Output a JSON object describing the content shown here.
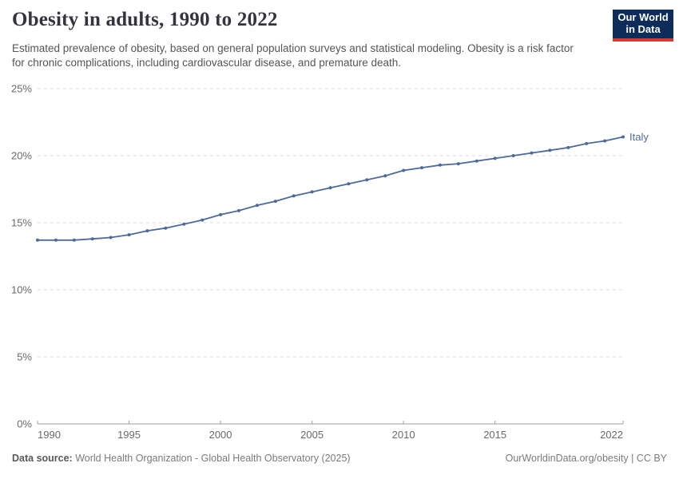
{
  "header": {
    "title": "Obesity in adults, 1990 to 2022",
    "subtitle": "Estimated prevalence of obesity, based on general population surveys and statistical modeling. Obesity is a risk factor for chronic complications, including cardiovascular disease, and premature death.",
    "logo": {
      "line1": "Our World",
      "line2": "in Data",
      "bg_color": "#0d2c5a",
      "accent_color": "#d8392c"
    }
  },
  "chart_data": {
    "type": "line",
    "title": "Obesity in adults, 1990 to 2022",
    "x": [
      1990,
      1991,
      1992,
      1993,
      1994,
      1995,
      1996,
      1997,
      1998,
      1999,
      2000,
      2001,
      2002,
      2003,
      2004,
      2005,
      2006,
      2007,
      2008,
      2009,
      2010,
      2011,
      2012,
      2013,
      2014,
      2015,
      2016,
      2017,
      2018,
      2019,
      2020,
      2021,
      2022
    ],
    "series": [
      {
        "name": "Italy",
        "color": "#4c6a9c",
        "values": [
          13.7,
          13.7,
          13.7,
          13.8,
          13.9,
          14.1,
          14.4,
          14.6,
          14.9,
          15.2,
          15.6,
          15.9,
          16.3,
          16.6,
          17.0,
          17.3,
          17.6,
          17.9,
          18.2,
          18.5,
          18.9,
          19.1,
          19.3,
          19.4,
          19.6,
          19.8,
          20.0,
          20.2,
          20.4,
          20.6,
          20.9,
          21.1,
          21.4
        ]
      }
    ],
    "xlim": [
      1990,
      2022
    ],
    "ylim": [
      0,
      25
    ],
    "yticks": [
      0,
      5,
      10,
      15,
      20,
      25
    ],
    "ytick_labels": [
      "0%",
      "5%",
      "10%",
      "15%",
      "20%",
      "25%"
    ],
    "xticks": [
      1990,
      1995,
      2000,
      2005,
      2010,
      2015,
      2022
    ],
    "grid": "horizontal-dashed",
    "legend_position": "end-of-line",
    "colors": {
      "gridline": "#dcdcdc",
      "axis": "#9e9e9e",
      "tick_text": "#696969"
    }
  },
  "footer": {
    "datasource_label": "Data source:",
    "datasource_text": " World Health Organization - Global Health Observatory (2025)",
    "credit": "OurWorldinData.org/obesity | CC BY"
  }
}
